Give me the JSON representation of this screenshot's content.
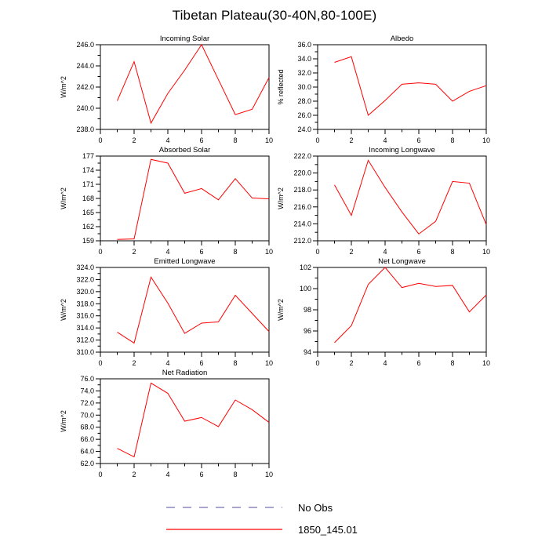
{
  "page_title": "Tibetan Plateau(30-40N,80-100E)",
  "legend": [
    {
      "label": "No Obs",
      "style": "dashed",
      "color": "#7570b3"
    },
    {
      "label": "1850_145.01",
      "style": "solid",
      "color": "#ff0000"
    }
  ],
  "axes": {
    "xlim": [
      0,
      10
    ],
    "xticks": [
      0,
      2,
      4,
      6,
      8,
      10
    ],
    "xtick_decimals": 0
  },
  "series_name": "1850_145.01",
  "chart_data": [
    {
      "id": "incoming-solar",
      "type": "line",
      "title": "Incoming Solar",
      "ylabel": "W/m^2",
      "ylim": [
        238.0,
        246.0
      ],
      "ytick_step": 2.0,
      "decimals": 1,
      "color": "#ff0000",
      "x": [
        1,
        2,
        3,
        4,
        5,
        6,
        7,
        8,
        9,
        10
      ],
      "values": [
        240.7,
        244.4,
        238.6,
        241.4,
        243.6,
        246.0,
        242.7,
        239.4,
        239.9,
        242.9
      ]
    },
    {
      "id": "albedo",
      "type": "line",
      "title": "Albedo",
      "ylabel": "% reflected",
      "ylim": [
        24.0,
        36.0
      ],
      "ytick_step": 2.0,
      "decimals": 1,
      "color": "#ff0000",
      "x": [
        1,
        2,
        3,
        4,
        5,
        6,
        7,
        8,
        9,
        10
      ],
      "values": [
        33.5,
        34.3,
        26.0,
        28.1,
        30.4,
        30.6,
        30.4,
        28.0,
        29.4,
        30.2
      ]
    },
    {
      "id": "absorbed-solar",
      "type": "line",
      "title": "Absorbed Solar",
      "ylabel": "W/m^2",
      "ylim": [
        159,
        177
      ],
      "ytick_step": 3,
      "decimals": 0,
      "color": "#ff0000",
      "x": [
        1,
        2,
        3,
        4,
        5,
        6,
        7,
        8,
        9,
        10
      ],
      "values": [
        159.3,
        159.4,
        176.3,
        175.5,
        169.1,
        170.1,
        167.7,
        172.2,
        168.1,
        167.9
      ]
    },
    {
      "id": "incoming-longwave",
      "type": "line",
      "title": "Incoming Longwave",
      "ylabel": "W/m^2",
      "ylim": [
        212.0,
        222.0
      ],
      "ytick_step": 2.0,
      "decimals": 1,
      "color": "#ff0000",
      "x": [
        1,
        2,
        3,
        4,
        5,
        6,
        7,
        8,
        9,
        10
      ],
      "values": [
        218.6,
        215.0,
        221.5,
        218.3,
        215.4,
        212.8,
        214.3,
        219.0,
        218.8,
        213.9
      ]
    },
    {
      "id": "emitted-longwave",
      "type": "line",
      "title": "Emitted Longwave",
      "ylabel": "W/m^2",
      "ylim": [
        310.0,
        324.0
      ],
      "ytick_step": 2.0,
      "decimals": 1,
      "color": "#ff0000",
      "x": [
        1,
        2,
        3,
        4,
        5,
        6,
        7,
        8,
        9,
        10
      ],
      "values": [
        313.3,
        311.5,
        322.4,
        318.1,
        313.1,
        314.8,
        315.0,
        319.4,
        316.4,
        313.4
      ]
    },
    {
      "id": "net-longwave",
      "type": "line",
      "title": "Net Longwave",
      "ylabel": "W/m^2",
      "ylim": [
        94,
        102
      ],
      "ytick_step": 2,
      "decimals": 0,
      "color": "#ff0000",
      "x": [
        1,
        2,
        3,
        4,
        5,
        6,
        7,
        8,
        9,
        10
      ],
      "values": [
        94.9,
        96.5,
        100.4,
        102.0,
        100.1,
        100.5,
        100.2,
        100.3,
        97.8,
        99.4
      ]
    },
    {
      "id": "net-radiation",
      "type": "line",
      "title": "Net Radiation",
      "ylabel": "W/m^2",
      "ylim": [
        62.0,
        76.0
      ],
      "ytick_step": 2.0,
      "decimals": 1,
      "color": "#ff0000",
      "x": [
        1,
        2,
        3,
        4,
        5,
        6,
        7,
        8,
        9,
        10
      ],
      "values": [
        64.5,
        63.1,
        75.3,
        73.6,
        69.0,
        69.6,
        68.1,
        72.5,
        70.9,
        68.8
      ]
    }
  ]
}
